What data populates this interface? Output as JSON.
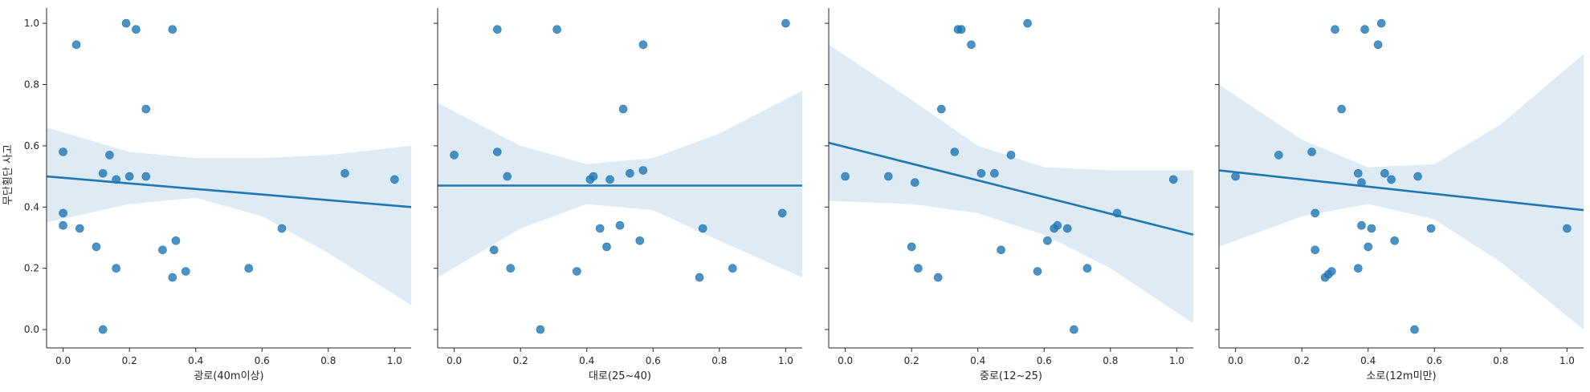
{
  "figure": {
    "ylabel": "무단횡단 사고"
  },
  "chart_data": [
    {
      "type": "scatter",
      "title": "",
      "xlabel": "광로(40m이상)",
      "ylabel": "무단횡단 사고",
      "xlim": [
        -0.05,
        1.05
      ],
      "ylim": [
        -0.06,
        1.05
      ],
      "xticks": [
        "0.0",
        "0.2",
        "0.4",
        "0.6",
        "0.8",
        "1.0"
      ],
      "yticks": [
        "0.0",
        "0.2",
        "0.4",
        "0.6",
        "0.8",
        "1.0"
      ],
      "grid": false,
      "x": [
        0.0,
        0.0,
        0.0,
        0.04,
        0.05,
        0.1,
        0.12,
        0.12,
        0.14,
        0.16,
        0.16,
        0.19,
        0.2,
        0.22,
        0.25,
        0.25,
        0.3,
        0.33,
        0.33,
        0.34,
        0.37,
        0.56,
        0.66,
        0.85,
        1.0
      ],
      "y": [
        0.58,
        0.38,
        0.34,
        0.93,
        0.33,
        0.27,
        0.51,
        0.0,
        0.57,
        0.49,
        0.2,
        1.0,
        0.5,
        0.98,
        0.72,
        0.5,
        0.26,
        0.98,
        0.17,
        0.29,
        0.19,
        0.2,
        0.33,
        0.51,
        0.49
      ],
      "regression": {
        "x": [
          -0.05,
          1.05
        ],
        "y": [
          0.5,
          0.4
        ]
      },
      "ci_band": {
        "x": [
          -0.05,
          0.2,
          0.4,
          0.6,
          0.8,
          1.05
        ],
        "lower": [
          0.35,
          0.41,
          0.43,
          0.37,
          0.25,
          0.08
        ],
        "upper": [
          0.66,
          0.58,
          0.56,
          0.56,
          0.57,
          0.6
        ]
      }
    },
    {
      "type": "scatter",
      "title": "",
      "xlabel": "대로(25~40)",
      "ylabel": "",
      "xlim": [
        -0.05,
        1.05
      ],
      "ylim": [
        -0.06,
        1.05
      ],
      "xticks": [
        "0.0",
        "0.2",
        "0.4",
        "0.6",
        "0.8",
        "1.0"
      ],
      "yticks": [
        "0.0",
        "0.2",
        "0.4",
        "0.6",
        "0.8",
        "1.0"
      ],
      "grid": false,
      "x": [
        0.0,
        0.12,
        0.13,
        0.13,
        0.16,
        0.17,
        0.26,
        0.31,
        0.37,
        0.41,
        0.42,
        0.44,
        0.46,
        0.47,
        0.5,
        0.51,
        0.53,
        0.56,
        0.57,
        0.57,
        0.74,
        0.75,
        0.84,
        0.99,
        1.0
      ],
      "y": [
        0.57,
        0.26,
        0.98,
        0.58,
        0.5,
        0.2,
        0.0,
        0.98,
        0.19,
        0.49,
        0.5,
        0.33,
        0.27,
        0.49,
        0.34,
        0.72,
        0.51,
        0.29,
        0.93,
        0.52,
        0.17,
        0.33,
        0.2,
        0.38,
        1.0
      ],
      "regression": {
        "x": [
          -0.05,
          1.05
        ],
        "y": [
          0.47,
          0.47
        ]
      },
      "ci_band": {
        "x": [
          -0.05,
          0.2,
          0.4,
          0.6,
          0.8,
          1.05
        ],
        "lower": [
          0.17,
          0.33,
          0.41,
          0.39,
          0.29,
          0.17
        ],
        "upper": [
          0.74,
          0.6,
          0.54,
          0.56,
          0.64,
          0.78
        ]
      }
    },
    {
      "type": "scatter",
      "title": "",
      "xlabel": "중로(12~25)",
      "ylabel": "",
      "xlim": [
        -0.05,
        1.05
      ],
      "ylim": [
        -0.06,
        1.05
      ],
      "xticks": [
        "0.0",
        "0.2",
        "0.4",
        "0.6",
        "0.8",
        "1.0"
      ],
      "yticks": [
        "0.0",
        "0.2",
        "0.4",
        "0.6",
        "0.8",
        "1.0"
      ],
      "grid": false,
      "x": [
        0.0,
        0.13,
        0.2,
        0.21,
        0.22,
        0.28,
        0.29,
        0.33,
        0.34,
        0.35,
        0.38,
        0.41,
        0.45,
        0.47,
        0.5,
        0.55,
        0.58,
        0.61,
        0.63,
        0.64,
        0.67,
        0.69,
        0.73,
        0.82,
        0.99
      ],
      "y": [
        0.5,
        0.5,
        0.27,
        0.48,
        0.2,
        0.17,
        0.72,
        0.58,
        0.98,
        0.98,
        0.93,
        0.51,
        0.51,
        0.26,
        0.57,
        1.0,
        0.19,
        0.29,
        0.33,
        0.34,
        0.33,
        0.0,
        0.2,
        0.38,
        0.49
      ],
      "regression": {
        "x": [
          -0.05,
          1.05
        ],
        "y": [
          0.61,
          0.31
        ]
      },
      "ci_band": {
        "x": [
          -0.05,
          0.2,
          0.4,
          0.6,
          0.8,
          1.05
        ],
        "lower": [
          0.42,
          0.41,
          0.38,
          0.31,
          0.2,
          0.02
        ],
        "upper": [
          0.93,
          0.75,
          0.6,
          0.53,
          0.52,
          0.52
        ]
      }
    },
    {
      "type": "scatter",
      "title": "",
      "xlabel": "소로(12m미만)",
      "ylabel": "",
      "xlim": [
        -0.05,
        1.05
      ],
      "ylim": [
        -0.06,
        1.05
      ],
      "xticks": [
        "0.0",
        "0.2",
        "0.4",
        "0.6",
        "0.8",
        "1.0"
      ],
      "yticks": [
        "0.0",
        "0.2",
        "0.4",
        "0.6",
        "0.8",
        "1.0"
      ],
      "grid": false,
      "x": [
        0.0,
        0.13,
        0.23,
        0.24,
        0.24,
        0.27,
        0.28,
        0.29,
        0.3,
        0.32,
        0.37,
        0.37,
        0.38,
        0.38,
        0.39,
        0.4,
        0.41,
        0.43,
        0.44,
        0.45,
        0.47,
        0.48,
        0.54,
        0.55,
        0.59,
        1.0
      ],
      "y": [
        0.5,
        0.57,
        0.58,
        0.38,
        0.26,
        0.17,
        0.18,
        0.19,
        0.98,
        0.72,
        0.2,
        0.51,
        0.48,
        0.34,
        0.98,
        0.27,
        0.33,
        0.93,
        1.0,
        0.51,
        0.49,
        0.29,
        0.0,
        0.5,
        0.33,
        0.33
      ],
      "regression": {
        "x": [
          -0.05,
          1.05
        ],
        "y": [
          0.52,
          0.39
        ]
      },
      "ci_band": {
        "x": [
          -0.05,
          0.2,
          0.4,
          0.6,
          0.8,
          1.05
        ],
        "lower": [
          0.27,
          0.37,
          0.41,
          0.36,
          0.22,
          0.0
        ],
        "upper": [
          0.8,
          0.62,
          0.53,
          0.54,
          0.67,
          0.9
        ]
      }
    }
  ]
}
